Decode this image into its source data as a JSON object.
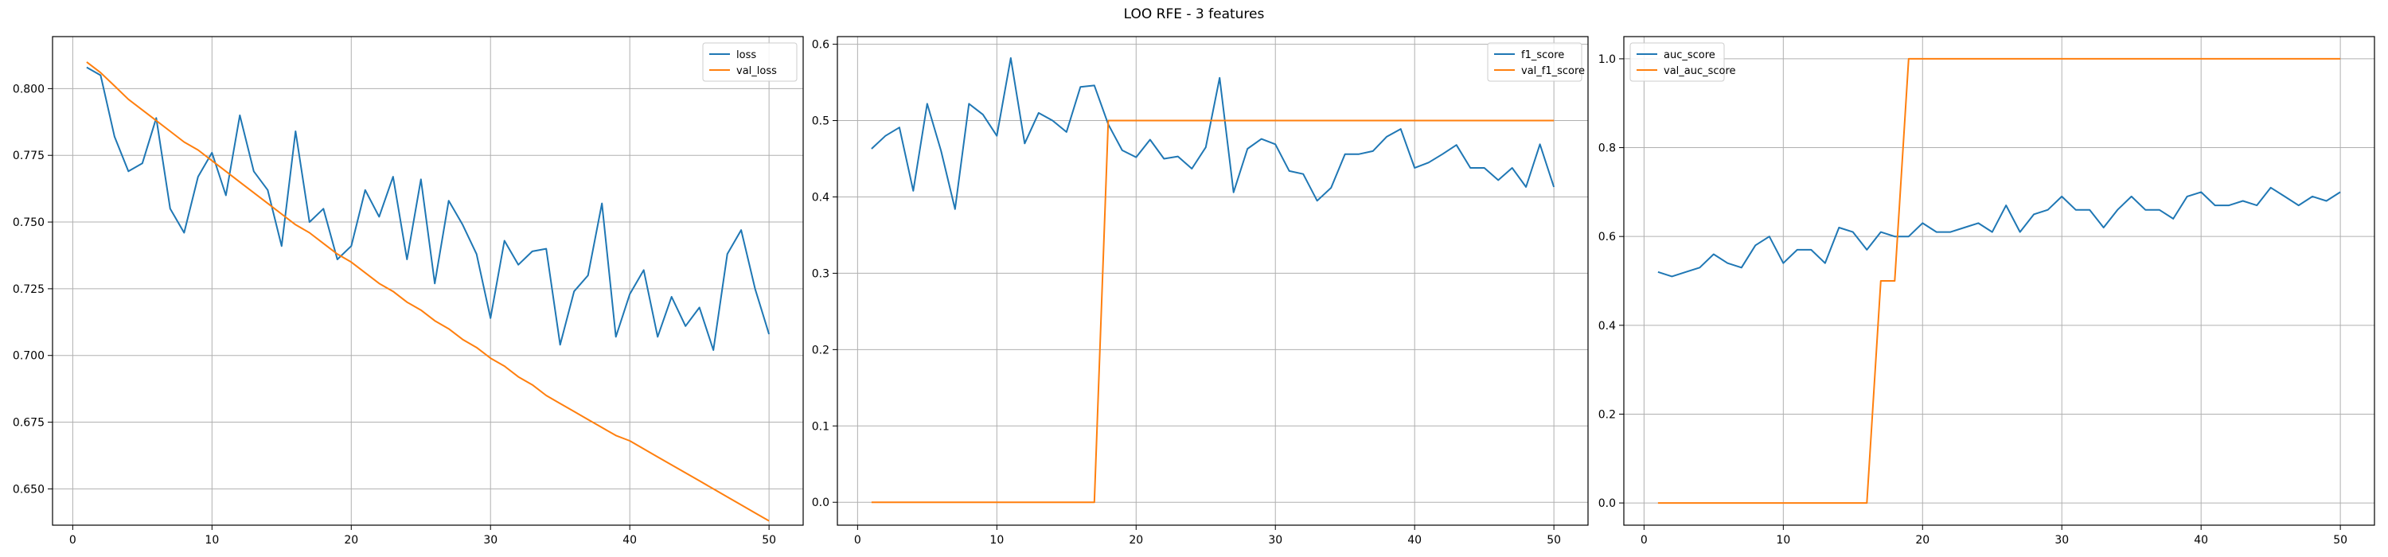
{
  "figure": {
    "title": "LOO RFE - 3 features"
  },
  "colors": {
    "train": "#1f77b4",
    "val": "#ff7f0e",
    "grid": "#b0b0b0",
    "axis": "#000000"
  },
  "chart_data": [
    {
      "type": "line",
      "xlim": [
        -1.45,
        52.45
      ],
      "ylim": [
        0.6364,
        0.8195
      ],
      "xticks": [
        0,
        10,
        20,
        30,
        40,
        50
      ],
      "yticks": [
        0.65,
        0.675,
        0.7,
        0.725,
        0.75,
        0.775,
        0.8
      ],
      "ytick_labels": [
        "0.650",
        "0.675",
        "0.700",
        "0.725",
        "0.750",
        "0.775",
        "0.800"
      ],
      "grid": true,
      "legend": "upper right",
      "x": [
        1,
        2,
        3,
        4,
        5,
        6,
        7,
        8,
        9,
        10,
        11,
        12,
        13,
        14,
        15,
        16,
        17,
        18,
        19,
        20,
        21,
        22,
        23,
        24,
        25,
        26,
        27,
        28,
        29,
        30,
        31,
        32,
        33,
        34,
        35,
        36,
        37,
        38,
        39,
        40,
        41,
        42,
        43,
        44,
        45,
        46,
        47,
        48,
        49,
        50
      ],
      "series": [
        {
          "name": "loss",
          "color": "#1f77b4",
          "values": [
            0.808,
            0.805,
            0.782,
            0.769,
            0.772,
            0.789,
            0.755,
            0.746,
            0.767,
            0.776,
            0.76,
            0.79,
            0.769,
            0.762,
            0.741,
            0.784,
            0.75,
            0.755,
            0.736,
            0.741,
            0.762,
            0.752,
            0.767,
            0.736,
            0.766,
            0.727,
            0.758,
            0.749,
            0.738,
            0.714,
            0.743,
            0.734,
            0.739,
            0.74,
            0.704,
            0.724,
            0.73,
            0.757,
            0.707,
            0.723,
            0.732,
            0.707,
            0.722,
            0.711,
            0.718,
            0.702,
            0.738,
            0.747,
            0.725,
            0.708
          ]
        },
        {
          "name": "val_loss",
          "color": "#ff7f0e",
          "values": [
            0.81,
            0.806,
            0.801,
            0.796,
            0.792,
            0.788,
            0.784,
            0.78,
            0.777,
            0.773,
            0.769,
            0.765,
            0.761,
            0.757,
            0.753,
            0.749,
            0.746,
            0.742,
            0.738,
            0.735,
            0.731,
            0.727,
            0.724,
            0.72,
            0.717,
            0.713,
            0.71,
            0.706,
            0.703,
            0.699,
            0.696,
            0.692,
            0.689,
            0.685,
            0.682,
            0.679,
            0.676,
            0.673,
            0.67,
            0.668,
            0.665,
            0.662,
            0.659,
            0.656,
            0.653,
            0.65,
            0.647,
            0.644,
            0.641,
            0.638
          ]
        }
      ]
    },
    {
      "type": "line",
      "xlim": [
        -1.45,
        52.45
      ],
      "ylim": [
        -0.03,
        0.61
      ],
      "xticks": [
        0,
        10,
        20,
        30,
        40,
        50
      ],
      "yticks": [
        0.0,
        0.1,
        0.2,
        0.3,
        0.4,
        0.5,
        0.6
      ],
      "ytick_labels": [
        "0.0",
        "0.1",
        "0.2",
        "0.3",
        "0.4",
        "0.5",
        "0.6"
      ],
      "grid": true,
      "legend": "upper right",
      "x": [
        1,
        2,
        3,
        4,
        5,
        6,
        7,
        8,
        9,
        10,
        11,
        12,
        13,
        14,
        15,
        16,
        17,
        18,
        19,
        20,
        21,
        22,
        23,
        24,
        25,
        26,
        27,
        28,
        29,
        30,
        31,
        32,
        33,
        34,
        35,
        36,
        37,
        38,
        39,
        40,
        41,
        42,
        43,
        44,
        45,
        46,
        47,
        48,
        49,
        50
      ],
      "series": [
        {
          "name": "f1_score",
          "color": "#1f77b4",
          "values": [
            0.463,
            0.48,
            0.491,
            0.408,
            0.522,
            0.46,
            0.384,
            0.522,
            0.508,
            0.48,
            0.582,
            0.47,
            0.51,
            0.5,
            0.485,
            0.544,
            0.546,
            0.495,
            0.461,
            0.452,
            0.475,
            0.45,
            0.453,
            0.437,
            0.465,
            0.556,
            0.406,
            0.463,
            0.476,
            0.469,
            0.434,
            0.43,
            0.395,
            0.412,
            0.456,
            0.456,
            0.46,
            0.479,
            0.489,
            0.438,
            0.445,
            0.456,
            0.468,
            0.438,
            0.438,
            0.422,
            0.438,
            0.413,
            0.469,
            0.413
          ]
        },
        {
          "name": "val_f1_score",
          "color": "#ff7f0e",
          "values": [
            0,
            0,
            0,
            0,
            0,
            0,
            0,
            0,
            0,
            0,
            0,
            0,
            0,
            0,
            0,
            0,
            0,
            0.5,
            0.5,
            0.5,
            0.5,
            0.5,
            0.5,
            0.5,
            0.5,
            0.5,
            0.5,
            0.5,
            0.5,
            0.5,
            0.5,
            0.5,
            0.5,
            0.5,
            0.5,
            0.5,
            0.5,
            0.5,
            0.5,
            0.5,
            0.5,
            0.5,
            0.5,
            0.5,
            0.5,
            0.5,
            0.5,
            0.5,
            0.5,
            0.5
          ]
        }
      ]
    },
    {
      "type": "line",
      "xlim": [
        -1.45,
        52.45
      ],
      "ylim": [
        -0.05,
        1.05
      ],
      "xticks": [
        0,
        10,
        20,
        30,
        40,
        50
      ],
      "yticks": [
        0.0,
        0.2,
        0.4,
        0.6,
        0.8,
        1.0
      ],
      "ytick_labels": [
        "0.0",
        "0.2",
        "0.4",
        "0.6",
        "0.8",
        "1.0"
      ],
      "grid": true,
      "legend": "upper left",
      "x": [
        1,
        2,
        3,
        4,
        5,
        6,
        7,
        8,
        9,
        10,
        11,
        12,
        13,
        14,
        15,
        16,
        17,
        18,
        19,
        20,
        21,
        22,
        23,
        24,
        25,
        26,
        27,
        28,
        29,
        30,
        31,
        32,
        33,
        34,
        35,
        36,
        37,
        38,
        39,
        40,
        41,
        42,
        43,
        44,
        45,
        46,
        47,
        48,
        49,
        50
      ],
      "series": [
        {
          "name": "auc_score",
          "color": "#1f77b4",
          "values": [
            0.52,
            0.51,
            0.52,
            0.53,
            0.56,
            0.54,
            0.53,
            0.58,
            0.6,
            0.54,
            0.57,
            0.57,
            0.54,
            0.62,
            0.61,
            0.57,
            0.61,
            0.6,
            0.6,
            0.63,
            0.61,
            0.61,
            0.62,
            0.63,
            0.61,
            0.67,
            0.61,
            0.65,
            0.66,
            0.69,
            0.66,
            0.66,
            0.62,
            0.66,
            0.69,
            0.66,
            0.66,
            0.64,
            0.69,
            0.7,
            0.67,
            0.67,
            0.68,
            0.67,
            0.71,
            0.69,
            0.67,
            0.69,
            0.68,
            0.7
          ]
        },
        {
          "name": "val_auc_score",
          "color": "#ff7f0e",
          "values": [
            0,
            0,
            0,
            0,
            0,
            0,
            0,
            0,
            0,
            0,
            0,
            0,
            0,
            0,
            0,
            0,
            0.5,
            0.5,
            1,
            1,
            1,
            1,
            1,
            1,
            1,
            1,
            1,
            1,
            1,
            1,
            1,
            1,
            1,
            1,
            1,
            1,
            1,
            1,
            1,
            1,
            1,
            1,
            1,
            1,
            1,
            1,
            1,
            1,
            1,
            1
          ]
        }
      ]
    }
  ]
}
